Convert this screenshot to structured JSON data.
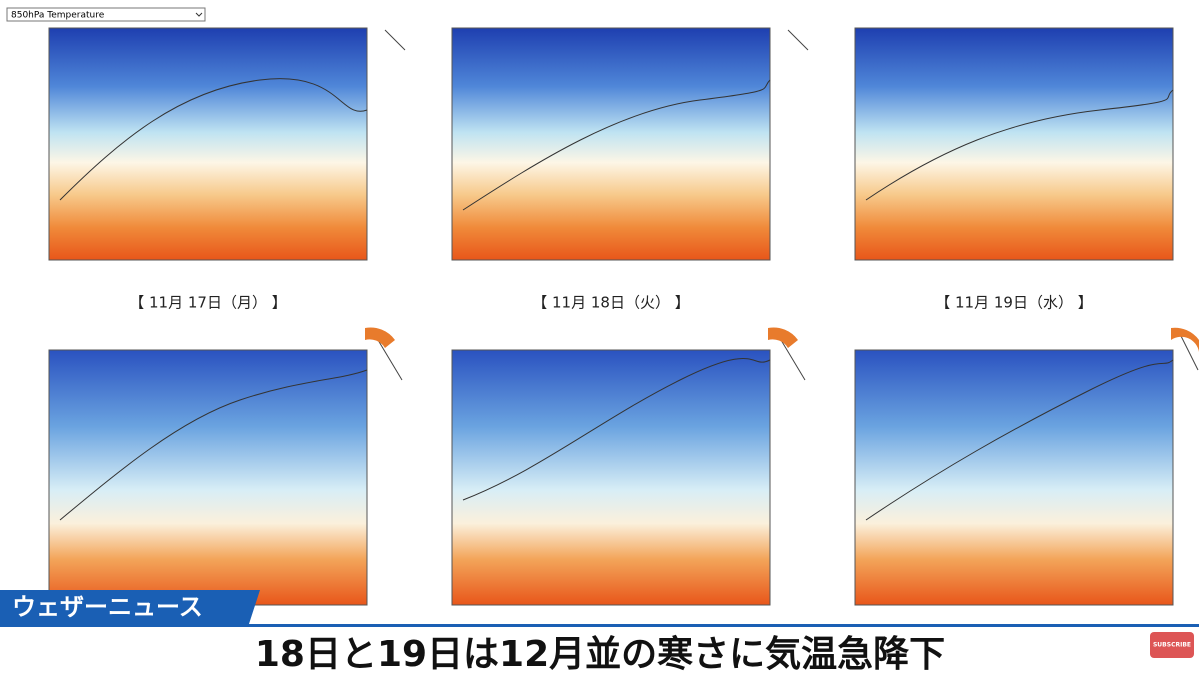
{
  "dropdown": {
    "selected": "850hPa Temperature"
  },
  "maps": {
    "dates": [
      "【 11月 17日（月） 】",
      "【 11月 18日（火） 】",
      "【 11月 19日（水） 】"
    ]
  },
  "banner": {
    "brand": "ウェザーニュース",
    "headline": "18日と19日は12月並の寒さに気温急降下"
  },
  "subscribe": "SUBSCRIBE"
}
